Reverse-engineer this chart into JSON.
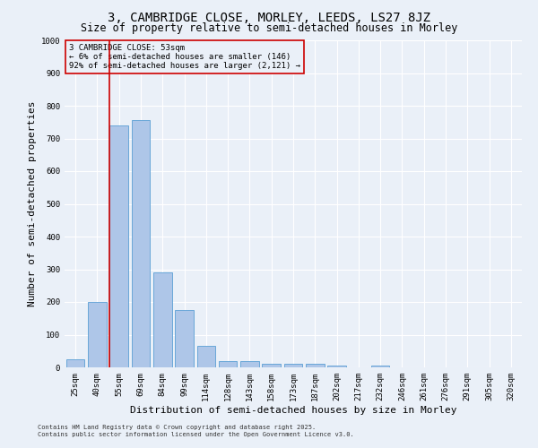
{
  "title": "3, CAMBRIDGE CLOSE, MORLEY, LEEDS, LS27 8JZ",
  "subtitle": "Size of property relative to semi-detached houses in Morley",
  "xlabel": "Distribution of semi-detached houses by size in Morley",
  "ylabel": "Number of semi-detached properties",
  "categories": [
    "25sqm",
    "40sqm",
    "55sqm",
    "69sqm",
    "84sqm",
    "99sqm",
    "114sqm",
    "128sqm",
    "143sqm",
    "158sqm",
    "173sqm",
    "187sqm",
    "202sqm",
    "217sqm",
    "232sqm",
    "246sqm",
    "261sqm",
    "276sqm",
    "291sqm",
    "305sqm",
    "320sqm"
  ],
  "values": [
    25,
    200,
    740,
    755,
    290,
    175,
    65,
    20,
    18,
    10,
    10,
    12,
    5,
    0,
    5,
    0,
    0,
    0,
    0,
    0,
    0
  ],
  "bar_color": "#aec6e8",
  "bar_edge_color": "#5a9fd4",
  "background_color": "#eaf0f8",
  "grid_color": "#ffffff",
  "vline_color": "#cc0000",
  "vline_pos": 1.575,
  "annotation_text": "3 CAMBRIDGE CLOSE: 53sqm\n← 6% of semi-detached houses are smaller (146)\n92% of semi-detached houses are larger (2,121) →",
  "annotation_box_color": "#cc0000",
  "ylim": [
    0,
    1000
  ],
  "yticks": [
    0,
    100,
    200,
    300,
    400,
    500,
    600,
    700,
    800,
    900,
    1000
  ],
  "footer_line1": "Contains HM Land Registry data © Crown copyright and database right 2025.",
  "footer_line2": "Contains public sector information licensed under the Open Government Licence v3.0.",
  "title_fontsize": 10,
  "subtitle_fontsize": 8.5,
  "axis_label_fontsize": 8,
  "tick_fontsize": 6.5,
  "annotation_fontsize": 6.5,
  "footer_fontsize": 5
}
